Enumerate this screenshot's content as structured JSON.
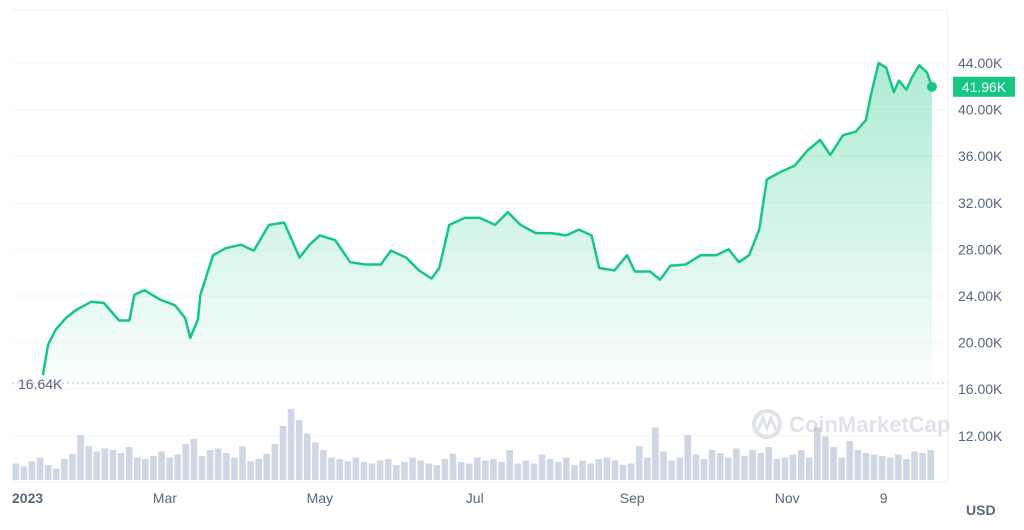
{
  "chart_data": {
    "type": "area",
    "currency_label": "USD",
    "watermark": "CoinMarketCap",
    "line_color": "#16c784",
    "current_price_label": "41.96K",
    "min_price_label": "16.64K",
    "y_ticks": [
      "44.00K",
      "40.00K",
      "36.00K",
      "32.00K",
      "28.00K",
      "24.00K",
      "20.00K",
      "16.00K",
      "12.00K"
    ],
    "y_tick_values": [
      44000,
      40000,
      36000,
      32000,
      28000,
      24000,
      20000,
      16000,
      12000
    ],
    "x_ticks": [
      {
        "label": "2023",
        "date": "2023-01-01",
        "bold": true
      },
      {
        "label": "Mar",
        "date": "2023-03-01"
      },
      {
        "label": "May",
        "date": "2023-05-01"
      },
      {
        "label": "Jul",
        "date": "2023-07-01"
      },
      {
        "label": "Sep",
        "date": "2023-09-01"
      },
      {
        "label": "Nov",
        "date": "2023-11-01"
      },
      {
        "label": "9",
        "date": "2023-12-09"
      }
    ],
    "grid": true,
    "series": [
      {
        "points": [
          [
            "2023-01-12",
            17200
          ],
          [
            "2023-01-14",
            19800
          ],
          [
            "2023-01-17",
            21100
          ],
          [
            "2023-01-21",
            22100
          ],
          [
            "2023-01-25",
            22800
          ],
          [
            "2023-01-31",
            23500
          ],
          [
            "2023-02-05",
            23400
          ],
          [
            "2023-02-11",
            21900
          ],
          [
            "2023-02-15",
            21900
          ],
          [
            "2023-02-17",
            24100
          ],
          [
            "2023-02-21",
            24500
          ],
          [
            "2023-02-27",
            23700
          ],
          [
            "2023-03-05",
            23200
          ],
          [
            "2023-03-09",
            22100
          ],
          [
            "2023-03-11",
            20400
          ],
          [
            "2023-03-14",
            22000
          ],
          [
            "2023-03-15",
            24100
          ],
          [
            "2023-03-20",
            27500
          ],
          [
            "2023-03-25",
            28100
          ],
          [
            "2023-03-31",
            28400
          ],
          [
            "2023-04-05",
            27900
          ],
          [
            "2023-04-11",
            30100
          ],
          [
            "2023-04-17",
            30300
          ],
          [
            "2023-04-20",
            28800
          ],
          [
            "2023-04-23",
            27300
          ],
          [
            "2023-04-27",
            28400
          ],
          [
            "2023-05-01",
            29200
          ],
          [
            "2023-05-07",
            28800
          ],
          [
            "2023-05-13",
            26900
          ],
          [
            "2023-05-19",
            26700
          ],
          [
            "2023-05-25",
            26700
          ],
          [
            "2023-05-29",
            27900
          ],
          [
            "2023-06-04",
            27300
          ],
          [
            "2023-06-09",
            26200
          ],
          [
            "2023-06-14",
            25500
          ],
          [
            "2023-06-17",
            26400
          ],
          [
            "2023-06-21",
            30100
          ],
          [
            "2023-06-27",
            30700
          ],
          [
            "2023-07-03",
            30700
          ],
          [
            "2023-07-09",
            30100
          ],
          [
            "2023-07-14",
            31200
          ],
          [
            "2023-07-19",
            30100
          ],
          [
            "2023-07-25",
            29400
          ],
          [
            "2023-07-31",
            29400
          ],
          [
            "2023-08-06",
            29200
          ],
          [
            "2023-08-11",
            29700
          ],
          [
            "2023-08-16",
            29200
          ],
          [
            "2023-08-19",
            26400
          ],
          [
            "2023-08-25",
            26200
          ],
          [
            "2023-08-30",
            27500
          ],
          [
            "2023-09-02",
            26100
          ],
          [
            "2023-09-08",
            26100
          ],
          [
            "2023-09-12",
            25400
          ],
          [
            "2023-09-16",
            26600
          ],
          [
            "2023-09-22",
            26700
          ],
          [
            "2023-09-28",
            27500
          ],
          [
            "2023-10-04",
            27500
          ],
          [
            "2023-10-09",
            28000
          ],
          [
            "2023-10-13",
            26900
          ],
          [
            "2023-10-17",
            27500
          ],
          [
            "2023-10-21",
            29700
          ],
          [
            "2023-10-24",
            34000
          ],
          [
            "2023-10-29",
            34600
          ],
          [
            "2023-11-04",
            35200
          ],
          [
            "2023-11-09",
            36500
          ],
          [
            "2023-11-14",
            37400
          ],
          [
            "2023-11-18",
            36100
          ],
          [
            "2023-11-23",
            37800
          ],
          [
            "2023-11-28",
            38100
          ],
          [
            "2023-12-02",
            39100
          ],
          [
            "2023-12-04",
            41300
          ],
          [
            "2023-12-07",
            44000
          ],
          [
            "2023-12-10",
            43600
          ],
          [
            "2023-12-13",
            41500
          ],
          [
            "2023-12-15",
            42500
          ],
          [
            "2023-12-18",
            41700
          ],
          [
            "2023-12-20",
            42700
          ],
          [
            "2023-12-23",
            43800
          ],
          [
            "2023-12-26",
            43200
          ],
          [
            "2023-12-28",
            41960
          ]
        ]
      }
    ],
    "volume_relative": [
      22,
      18,
      25,
      30,
      20,
      15,
      28,
      35,
      60,
      45,
      38,
      42,
      40,
      36,
      44,
      30,
      28,
      32,
      38,
      30,
      34,
      48,
      55,
      32,
      40,
      42,
      36,
      30,
      45,
      25,
      28,
      35,
      48,
      72,
      95,
      80,
      62,
      50,
      40,
      30,
      28,
      25,
      30,
      24,
      22,
      26,
      28,
      20,
      24,
      30,
      26,
      22,
      20,
      28,
      35,
      24,
      22,
      30,
      26,
      28,
      24,
      40,
      22,
      26,
      22,
      34,
      28,
      24,
      30,
      20,
      26,
      22,
      28,
      30,
      26,
      20,
      22,
      45,
      30,
      70,
      38,
      26,
      30,
      60,
      34,
      28,
      40,
      36,
      30,
      42,
      32,
      40,
      36,
      44,
      28,
      30,
      34,
      40,
      30,
      70,
      58,
      44,
      30,
      52,
      40,
      36,
      34,
      32,
      30,
      34,
      28,
      38,
      36,
      40
    ]
  }
}
